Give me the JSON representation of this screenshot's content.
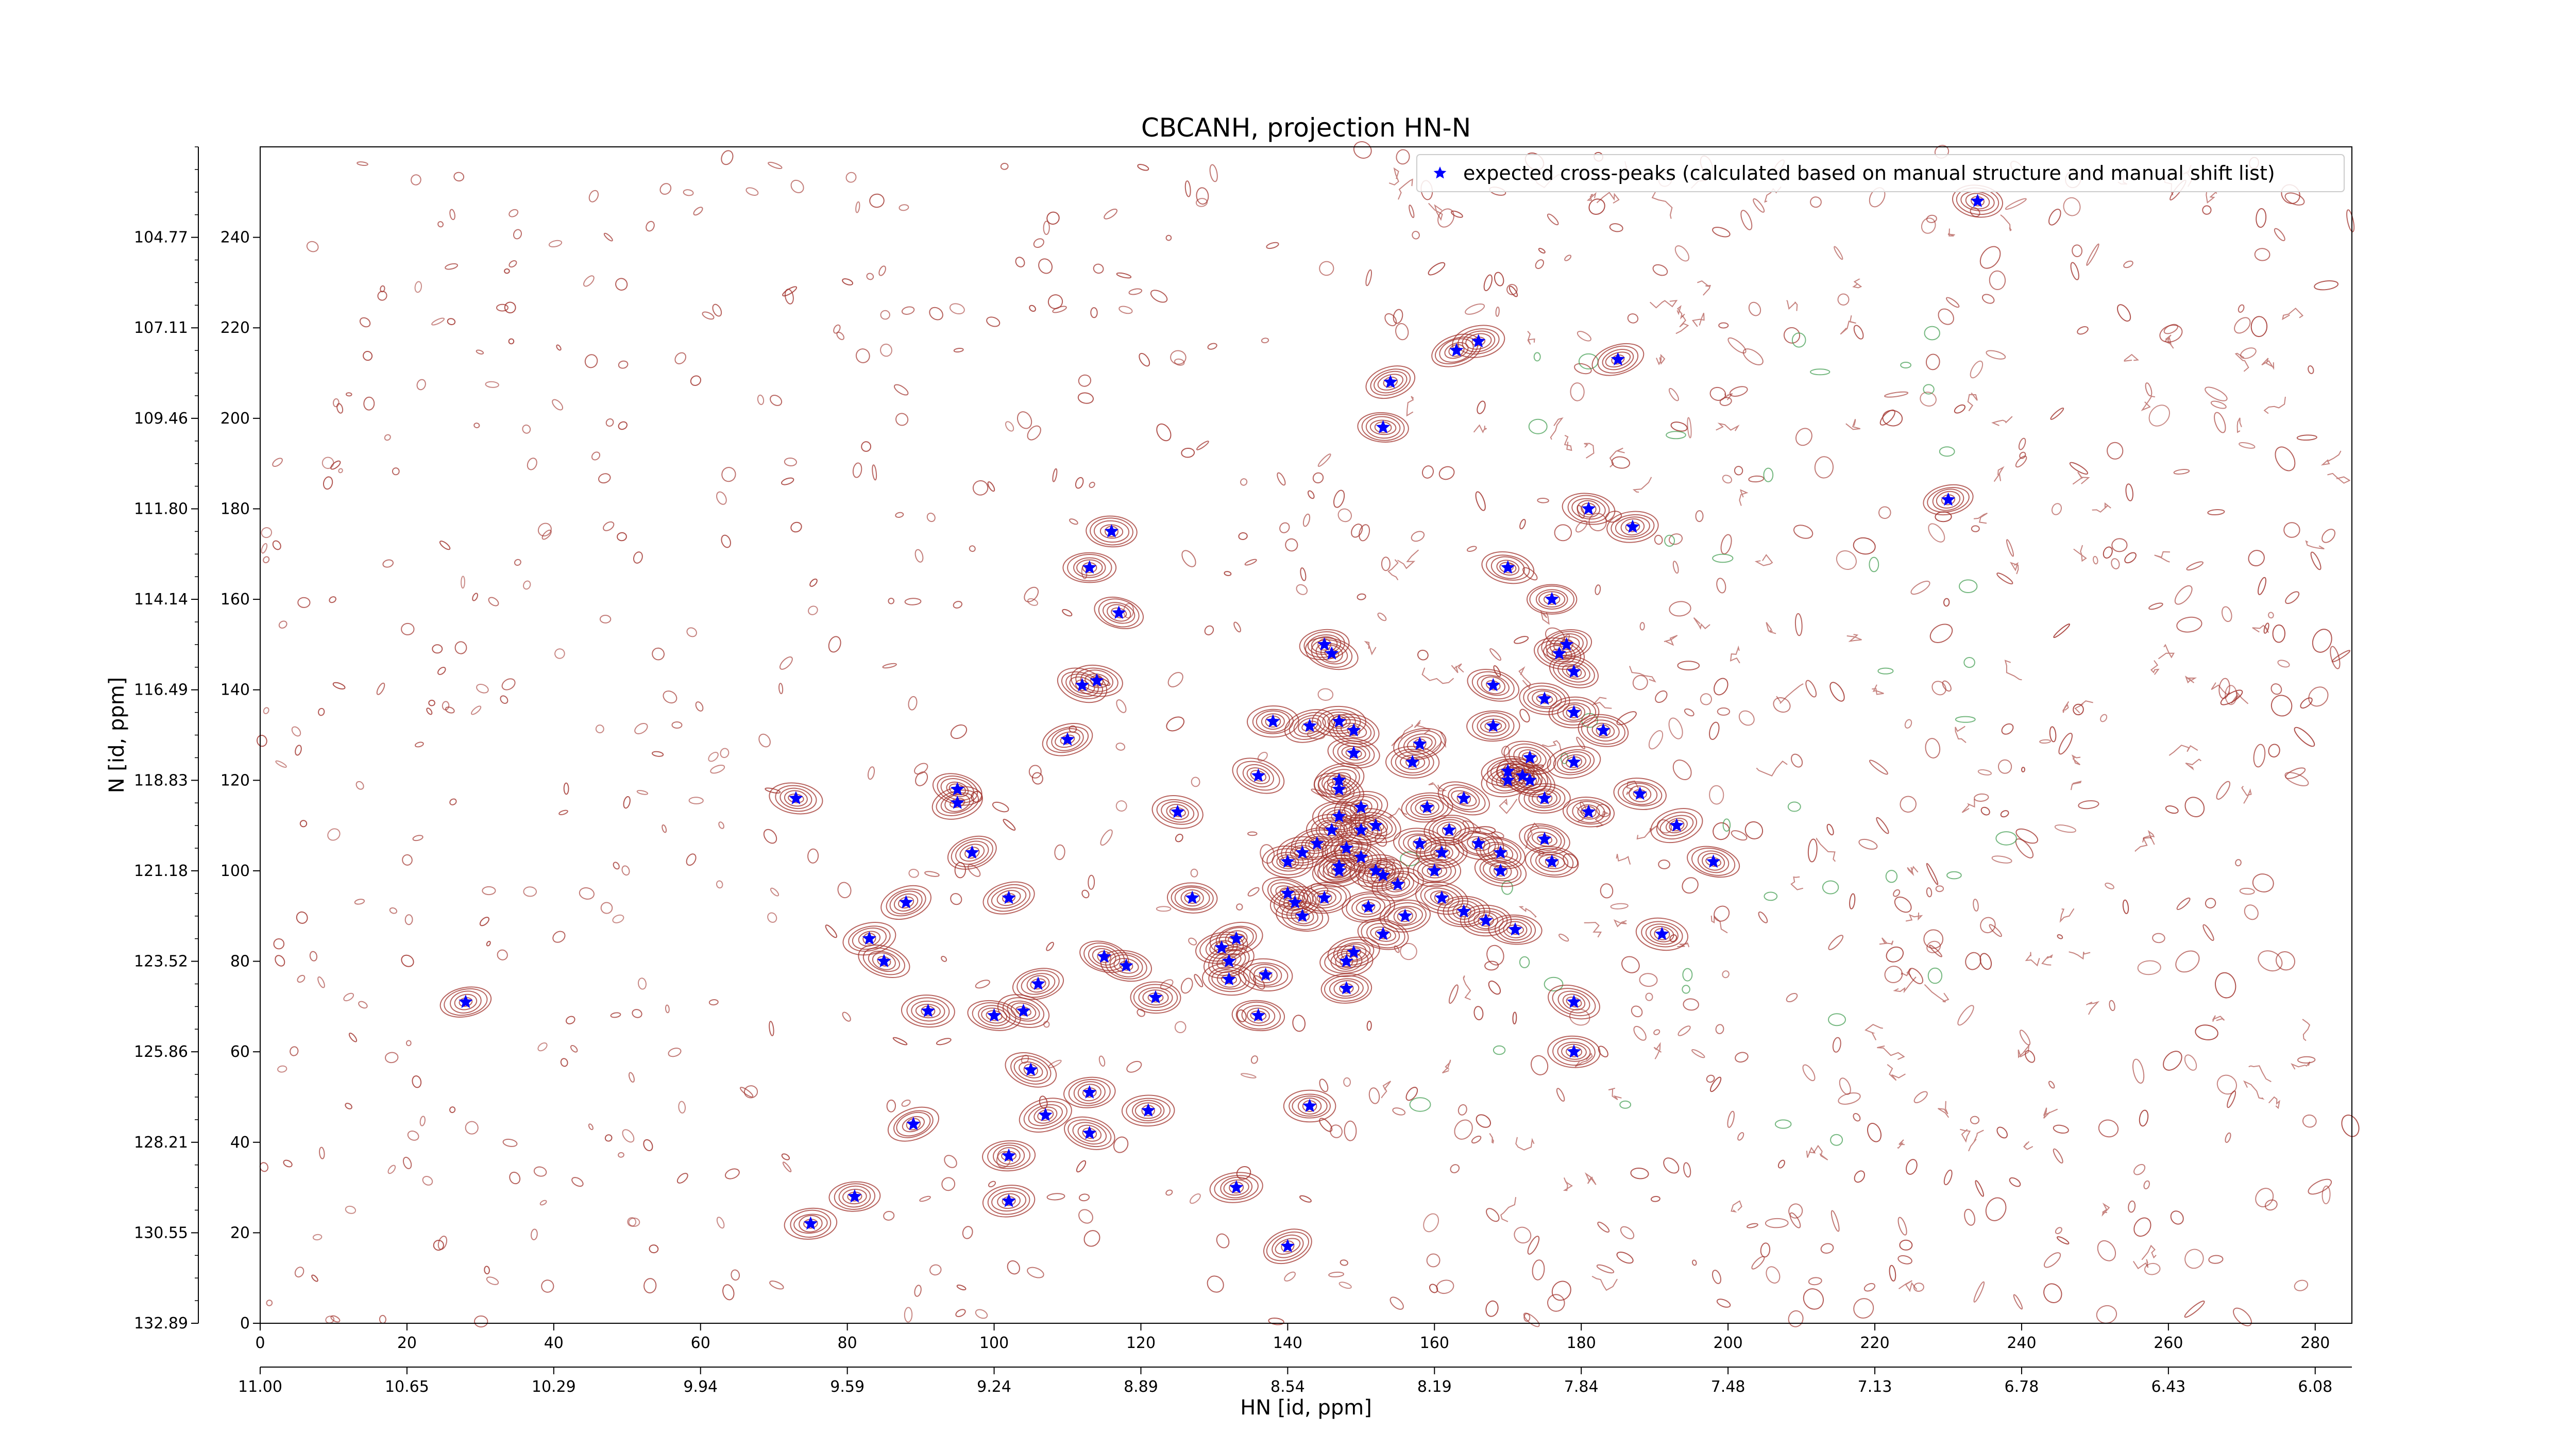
{
  "chart_data": {
    "type": "scatter",
    "title": "CBCANH, projection HN-N",
    "xlabel": "HN [id, ppm]",
    "ylabel": "N [id, ppm]",
    "x_index_range": [
      0,
      285
    ],
    "y_index_range": [
      0,
      260
    ],
    "x_index_ticks": [
      "0",
      "20",
      "40",
      "60",
      "80",
      "100",
      "120",
      "140",
      "160",
      "180",
      "200",
      "220",
      "240",
      "260",
      "280"
    ],
    "x_ppm_ticks": [
      "11.00",
      "10.65",
      "10.29",
      "9.94",
      "9.59",
      "9.24",
      "8.89",
      "8.54",
      "8.19",
      "7.84",
      "7.48",
      "7.13",
      "6.78",
      "6.43",
      "6.08"
    ],
    "y_index_ticks": [
      "0",
      "20",
      "40",
      "60",
      "80",
      "100",
      "120",
      "140",
      "160",
      "180",
      "200",
      "220",
      "240"
    ],
    "y_ppm_ticks": [
      "132.89",
      "130.55",
      "128.21",
      "125.86",
      "123.52",
      "121.18",
      "118.83",
      "116.49",
      "114.14",
      "111.80",
      "109.46",
      "107.11",
      "104.77"
    ],
    "legend": {
      "position": "top-right",
      "label": "expected cross-peaks (calculated based on manual structure and manual shift list)"
    },
    "series": [
      {
        "name": "expected cross-peaks (calculated based on manual structure and manual shift list)",
        "color": "#0000ff",
        "marker": "star",
        "points": [
          [
            28,
            71
          ],
          [
            73,
            116
          ],
          [
            75,
            22
          ],
          [
            81,
            28
          ],
          [
            83,
            85
          ],
          [
            85,
            80
          ],
          [
            88,
            93
          ],
          [
            89,
            44
          ],
          [
            91,
            69
          ],
          [
            95,
            118
          ],
          [
            95,
            115
          ],
          [
            97,
            104
          ],
          [
            100,
            68
          ],
          [
            102,
            37
          ],
          [
            102,
            94
          ],
          [
            102,
            27
          ],
          [
            104,
            69
          ],
          [
            105,
            56
          ],
          [
            106,
            75
          ],
          [
            107,
            46
          ],
          [
            110,
            129
          ],
          [
            112,
            141
          ],
          [
            113,
            42
          ],
          [
            113,
            51
          ],
          [
            113,
            167
          ],
          [
            114,
            142
          ],
          [
            115,
            81
          ],
          [
            116,
            175
          ],
          [
            117,
            157
          ],
          [
            118,
            79
          ],
          [
            121,
            47
          ],
          [
            122,
            72
          ],
          [
            125,
            113
          ],
          [
            127,
            94
          ],
          [
            131,
            83
          ],
          [
            132,
            76
          ],
          [
            132,
            80
          ],
          [
            133,
            85
          ],
          [
            133,
            30
          ],
          [
            136,
            121
          ],
          [
            136,
            68
          ],
          [
            137,
            77
          ],
          [
            138,
            133
          ],
          [
            140,
            95
          ],
          [
            140,
            102
          ],
          [
            140,
            17
          ],
          [
            141,
            93
          ],
          [
            142,
            90
          ],
          [
            143,
            132
          ],
          [
            143,
            48
          ],
          [
            144,
            106
          ],
          [
            145,
            94
          ],
          [
            146,
            109
          ],
          [
            145,
            150
          ],
          [
            146,
            148
          ],
          [
            147,
            112
          ],
          [
            147,
            118
          ],
          [
            147,
            120
          ],
          [
            147,
            133
          ],
          [
            147,
            101
          ],
          [
            148,
            105
          ],
          [
            147,
            100
          ],
          [
            148,
            74
          ],
          [
            148,
            80
          ],
          [
            149,
            82
          ],
          [
            149,
            131
          ],
          [
            149,
            126
          ],
          [
            150,
            109
          ],
          [
            150,
            114
          ],
          [
            150,
            103
          ],
          [
            151,
            92
          ],
          [
            152,
            100
          ],
          [
            152,
            110
          ],
          [
            153,
            198
          ],
          [
            153,
            99
          ],
          [
            153,
            86
          ],
          [
            154,
            208
          ],
          [
            155,
            97
          ],
          [
            156,
            90
          ],
          [
            157,
            124
          ],
          [
            158,
            128
          ],
          [
            159,
            114
          ],
          [
            158,
            106
          ],
          [
            160,
            100
          ],
          [
            161,
            94
          ],
          [
            162,
            109
          ],
          [
            161,
            104
          ],
          [
            163,
            215
          ],
          [
            164,
            116
          ],
          [
            164,
            91
          ],
          [
            166,
            217
          ],
          [
            166,
            106
          ],
          [
            167,
            89
          ],
          [
            168,
            141
          ],
          [
            168,
            132
          ],
          [
            169,
            104
          ],
          [
            169,
            100
          ],
          [
            170,
            122
          ],
          [
            170,
            120
          ],
          [
            170,
            167
          ],
          [
            172,
            121
          ],
          [
            171,
            87
          ],
          [
            173,
            125
          ],
          [
            173,
            120
          ],
          [
            175,
            138
          ],
          [
            175,
            107
          ],
          [
            176,
            102
          ],
          [
            176,
            160
          ],
          [
            177,
            148
          ],
          [
            178,
            150
          ],
          [
            179,
            144
          ],
          [
            179,
            124
          ],
          [
            179,
            71
          ],
          [
            179,
            60
          ],
          [
            179,
            135
          ],
          [
            181,
            113
          ],
          [
            181,
            180
          ],
          [
            183,
            131
          ],
          [
            185,
            213
          ],
          [
            187,
            176
          ],
          [
            188,
            117
          ],
          [
            191,
            86
          ],
          [
            193,
            110
          ],
          [
            198,
            102
          ],
          [
            230,
            182
          ],
          [
            234,
            248
          ],
          [
            175,
            116
          ],
          [
            142,
            104
          ]
        ]
      }
    ]
  }
}
